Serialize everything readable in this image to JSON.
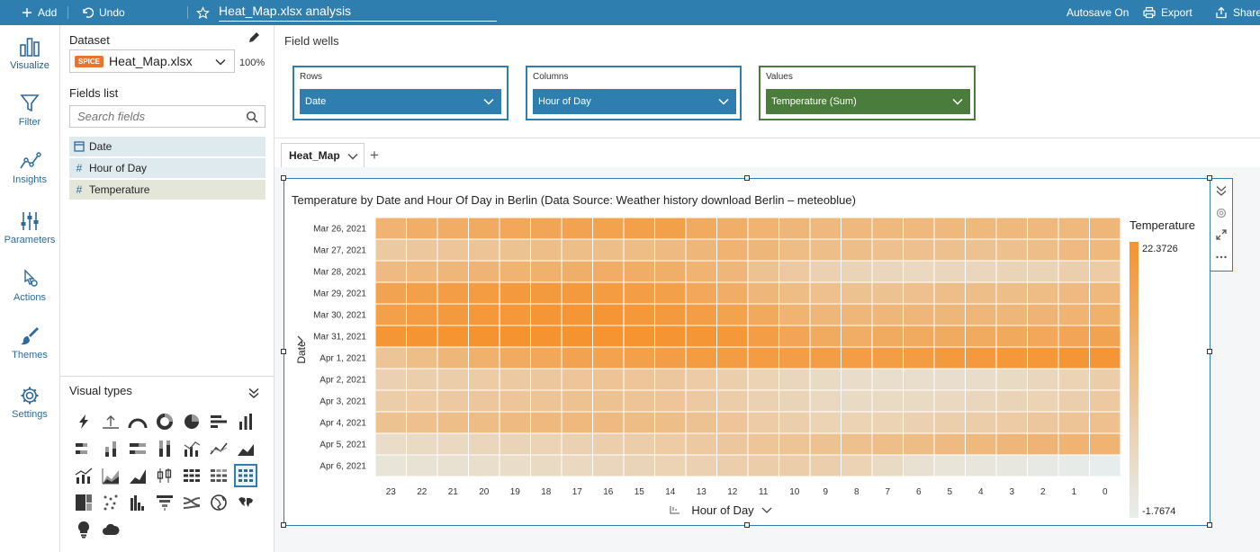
{
  "toolbar": {
    "add_label": "Add",
    "undo_label": "Undo",
    "analysis_title": "Heat_Map.xlsx analysis",
    "autosave_label": "Autosave On",
    "export_label": "Export",
    "share_label": "Share"
  },
  "nav": {
    "visualize": "Visualize",
    "filter": "Filter",
    "insights": "Insights",
    "parameters": "Parameters",
    "actions": "Actions",
    "themes": "Themes",
    "settings": "Settings"
  },
  "data_panel": {
    "dataset_heading": "Dataset",
    "spice_badge": "SPICE",
    "dataset_name": "Heat_Map.xlsx",
    "spice_usage": "100%",
    "fields_heading": "Fields list",
    "search_placeholder": "Search fields",
    "fields": [
      {
        "icon": "calendar-icon",
        "name": "Date"
      },
      {
        "icon": "hash-icon",
        "name": "Hour of Day"
      },
      {
        "icon": "hash-icon",
        "name": "Temperature"
      }
    ],
    "visual_types_heading": "Visual types"
  },
  "field_wells": {
    "heading": "Field wells",
    "rows": {
      "label": "Rows",
      "value": "Date"
    },
    "columns": {
      "label": "Columns",
      "value": "Hour of Day"
    },
    "values": {
      "label": "Values",
      "value": "Temperature (Sum)"
    }
  },
  "sheet": {
    "tab_label": "Heat_Map"
  },
  "visual": {
    "title": "Temperature by Date and Hour Of Day in Berlin (Data Source: Weather history download Berlin – meteoblue)",
    "legend_title": "Temperature",
    "legend_max": "22.3726",
    "legend_min": "-1.7674",
    "x_axis_label": "Hour of Day",
    "y_axis_label": "Date"
  },
  "colors": {
    "topbar": "#2e7fb0",
    "accent": "#2e7fb0",
    "values_well": "#4a7d3b",
    "heat_low": "#e6eeee",
    "heat_high": "#f5932f"
  },
  "chart_data": {
    "type": "heatmap",
    "title": "Temperature by Date and Hour Of Day in Berlin (Data Source: Weather history download Berlin – meteoblue)",
    "xlabel": "Hour of Day",
    "ylabel": "Date",
    "x": [
      "23",
      "22",
      "21",
      "20",
      "19",
      "18",
      "17",
      "16",
      "15",
      "14",
      "13",
      "12",
      "11",
      "10",
      "9",
      "8",
      "7",
      "6",
      "5",
      "4",
      "3",
      "2",
      "1",
      "0"
    ],
    "y": [
      "Mar 26, 2021",
      "Mar 27, 2021",
      "Mar 28, 2021",
      "Mar 29, 2021",
      "Mar 30, 2021",
      "Mar 31, 2021",
      "Apr 1, 2021",
      "Apr 2, 2021",
      "Apr 3, 2021",
      "Apr 4, 2021",
      "Apr 5, 2021",
      "Apr 6, 2021"
    ],
    "value_range": [
      -1.7674,
      22.3726
    ],
    "legend": "right",
    "values": [
      [
        14,
        15,
        15.5,
        16,
        17,
        17.5,
        18,
        18.5,
        19,
        19,
        16,
        15,
        14,
        13,
        12.5,
        12.5,
        12.5,
        12.5,
        12.5,
        12.5,
        12.5,
        12.5,
        12.5,
        13
      ],
      [
        8,
        8.5,
        9,
        9.5,
        10,
        11,
        11,
        11,
        11.5,
        12,
        13,
        14,
        13,
        11.5,
        11,
        11,
        10.5,
        10.5,
        10.5,
        10,
        10.5,
        11,
        12,
        12.5
      ],
      [
        12,
        12.5,
        13,
        13.5,
        14,
        14.5,
        15,
        15.5,
        15.5,
        15,
        14,
        13,
        10,
        8,
        6,
        5,
        4.5,
        4,
        4.5,
        4.5,
        5,
        5,
        6.5,
        7.5
      ],
      [
        18,
        19,
        19.5,
        20,
        20.5,
        20.5,
        20.5,
        20,
        19.5,
        19,
        17,
        15.5,
        13,
        11.5,
        10.5,
        10,
        10,
        10.5,
        11,
        11,
        11,
        11.5,
        12,
        12.5
      ],
      [
        19,
        20,
        20.5,
        21,
        21,
        21.5,
        21.5,
        21.5,
        21,
        20.5,
        19.5,
        18.5,
        16.5,
        14,
        13,
        13,
        13,
        13,
        13,
        13,
        13,
        13.5,
        14,
        14.5
      ],
      [
        21.5,
        22,
        22.2,
        22.3,
        22.3,
        22.3,
        22.3,
        22.2,
        22.2,
        22,
        21.5,
        21,
        19.5,
        17.5,
        16,
        15.5,
        16,
        16,
        16,
        16,
        16.5,
        17,
        17.5,
        18
      ],
      [
        9.5,
        11,
        13,
        14.5,
        16,
        17,
        18,
        18.5,
        19,
        19.5,
        20,
        20,
        20,
        19.5,
        19.5,
        19.5,
        19.5,
        20,
        20.5,
        20.5,
        21,
        21,
        21.5,
        21.5
      ],
      [
        6,
        6.5,
        7,
        7.5,
        8,
        8.5,
        9,
        9.5,
        9,
        8.5,
        7.5,
        6.5,
        5.5,
        4.5,
        3.5,
        3,
        2.5,
        2.5,
        2.5,
        3,
        3.5,
        4.5,
        5.5,
        7
      ],
      [
        7,
        7.5,
        8,
        8.5,
        9,
        9.5,
        10,
        10,
        9.5,
        9,
        8,
        7,
        6,
        5,
        4,
        3.5,
        3.5,
        3.5,
        4,
        4.5,
        5,
        5.5,
        6.5,
        8
      ],
      [
        10,
        10.5,
        11,
        11.5,
        12,
        12.5,
        12.5,
        12,
        11.5,
        11,
        10,
        9,
        7.5,
        6.5,
        5.5,
        5.5,
        5.5,
        6,
        6.5,
        7,
        7.5,
        8.5,
        9.5,
        10.5
      ],
      [
        3,
        3.5,
        4,
        4.5,
        5,
        5.5,
        6,
        6.5,
        7,
        7.5,
        8,
        8.5,
        9,
        9.5,
        10,
        10.5,
        11,
        11.5,
        12,
        12.5,
        13,
        13.5,
        14,
        14
      ],
      [
        1,
        1.5,
        2,
        2.5,
        3,
        3.5,
        4,
        4.5,
        5,
        5.5,
        6,
        6.5,
        7,
        7,
        6.5,
        5.5,
        3.5,
        2,
        1,
        0.5,
        0,
        -0.5,
        -1,
        -1.7
      ]
    ]
  }
}
